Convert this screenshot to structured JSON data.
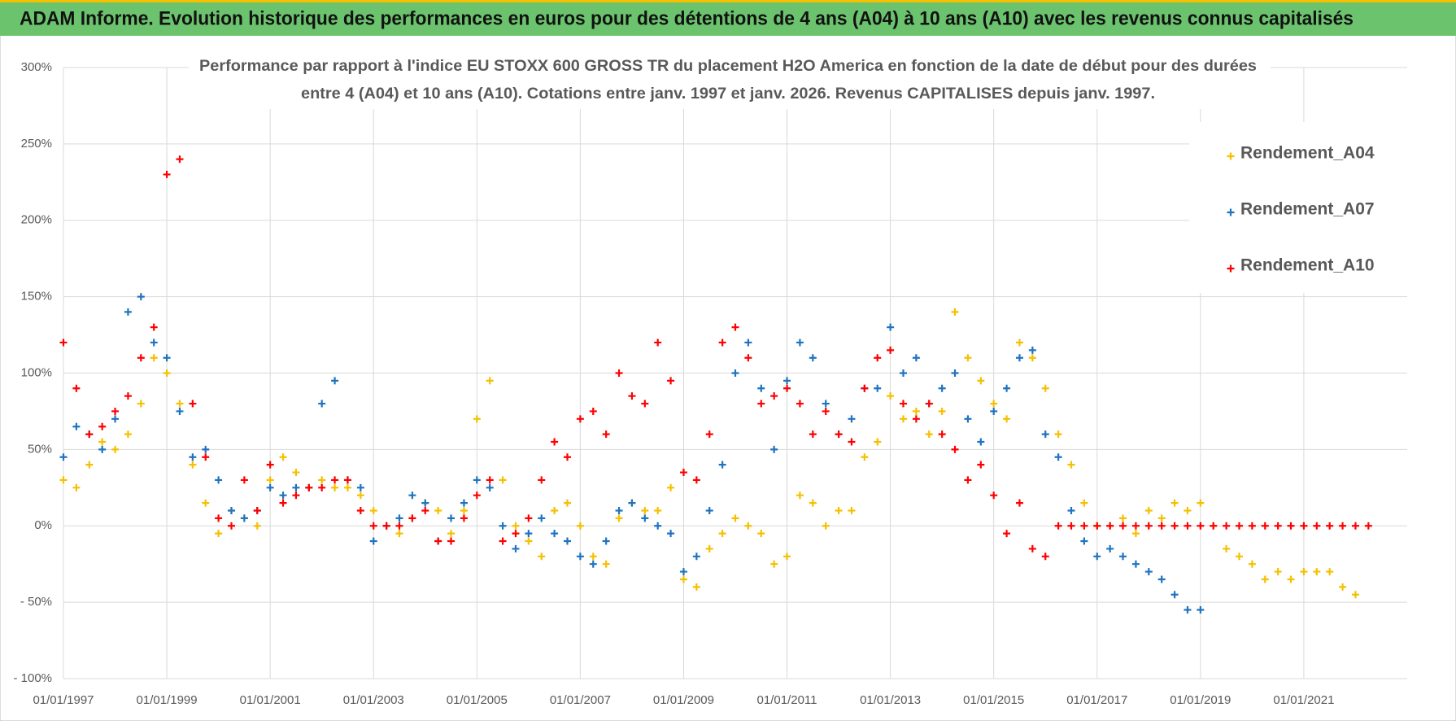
{
  "banner": "ADAM Informe. Evolution historique des performances en euros pour des détentions de 4 ans (A04) à 10 ans (A10) avec les revenus connus capitalisés",
  "chart_data": {
    "type": "scatter",
    "title": [
      "Performance par rapport à l'indice EU STOXX 600 GROSS TR  du placement H2O America en fonction de la date de début pour des durées",
      "entre 4 (A04) et 10 ans (A10).  Cotations entre janv. 1997 et janv. 2026. Revenus CAPITALISES  depuis janv. 1997."
    ],
    "x": [
      "01/01/1997",
      "01/04/1997",
      "01/07/1997",
      "01/10/1997",
      "01/01/1998",
      "01/04/1998",
      "01/07/1998",
      "01/10/1998",
      "01/01/1999",
      "01/04/1999",
      "01/07/1999",
      "01/10/1999",
      "01/01/2000",
      "01/04/2000",
      "01/07/2000",
      "01/10/2000",
      "01/01/2001",
      "01/04/2001",
      "01/07/2001",
      "01/10/2001",
      "01/01/2002",
      "01/04/2002",
      "01/07/2002",
      "01/10/2002",
      "01/01/2003",
      "01/04/2003",
      "01/07/2003",
      "01/10/2003",
      "01/01/2004",
      "01/04/2004",
      "01/07/2004",
      "01/10/2004",
      "01/01/2005",
      "01/04/2005",
      "01/07/2005",
      "01/10/2005",
      "01/01/2006",
      "01/04/2006",
      "01/07/2006",
      "01/10/2006",
      "01/01/2007",
      "01/04/2007",
      "01/07/2007",
      "01/10/2007",
      "01/01/2008",
      "01/04/2008",
      "01/07/2008",
      "01/10/2008",
      "01/01/2009",
      "01/04/2009",
      "01/07/2009",
      "01/10/2009",
      "01/01/2010",
      "01/04/2010",
      "01/07/2010",
      "01/10/2010",
      "01/01/2011",
      "01/04/2011",
      "01/07/2011",
      "01/10/2011",
      "01/01/2012",
      "01/04/2012",
      "01/07/2012",
      "01/10/2012",
      "01/01/2013",
      "01/04/2013",
      "01/07/2013",
      "01/10/2013",
      "01/01/2014",
      "01/04/2014",
      "01/07/2014",
      "01/10/2014",
      "01/01/2015",
      "01/04/2015",
      "01/07/2015",
      "01/10/2015",
      "01/01/2016",
      "01/04/2016",
      "01/07/2016",
      "01/10/2016",
      "01/01/2017",
      "01/04/2017",
      "01/07/2017",
      "01/10/2017",
      "01/01/2018",
      "01/04/2018",
      "01/07/2018",
      "01/10/2018",
      "01/01/2019",
      "01/04/2019",
      "01/07/2019",
      "01/10/2019",
      "01/01/2020",
      "01/04/2020",
      "01/07/2020",
      "01/10/2020",
      "01/01/2021",
      "01/04/2021",
      "01/07/2021",
      "01/10/2021",
      "01/01/2022",
      "01/04/2022",
      "01/07/2022",
      "01/10/2022"
    ],
    "series": [
      {
        "name": "Rendement_A04",
        "color": "#f5c000",
        "values": [
          30,
          25,
          40,
          55,
          50,
          60,
          80,
          110,
          100,
          80,
          40,
          15,
          -5,
          10,
          5,
          0,
          30,
          45,
          35,
          25,
          30,
          25,
          25,
          20,
          10,
          0,
          -5,
          5,
          15,
          10,
          -5,
          10,
          70,
          95,
          30,
          0,
          -10,
          -20,
          10,
          15,
          0,
          -20,
          -25,
          5,
          15,
          10,
          10,
          25,
          -35,
          -40,
          -15,
          -5,
          5,
          0,
          -5,
          -25,
          -20,
          20,
          15,
          0,
          10,
          10,
          45,
          55,
          85,
          70,
          75,
          60,
          75,
          140,
          110,
          95,
          80,
          70,
          120,
          110,
          90,
          60,
          40,
          15,
          0,
          0,
          5,
          -5,
          10,
          5,
          15,
          10,
          15,
          0,
          -15,
          -20,
          -25,
          -35,
          -30,
          -35,
          -30,
          -30,
          -30,
          -40,
          -45,
          null,
          null,
          null
        ]
      },
      {
        "name": "Rendement_A07",
        "color": "#1f73c0",
        "values": [
          45,
          65,
          60,
          50,
          70,
          140,
          150,
          120,
          110,
          75,
          45,
          50,
          30,
          10,
          5,
          10,
          25,
          20,
          25,
          25,
          80,
          95,
          30,
          25,
          -10,
          0,
          5,
          20,
          15,
          -10,
          5,
          15,
          30,
          25,
          0,
          -15,
          -5,
          5,
          -5,
          -10,
          -20,
          -25,
          -10,
          10,
          15,
          5,
          0,
          -5,
          -30,
          -20,
          10,
          40,
          100,
          120,
          90,
          50,
          95,
          120,
          110,
          80,
          60,
          70,
          90,
          90,
          130,
          100,
          110,
          80,
          90,
          100,
          70,
          55,
          75,
          90,
          110,
          115,
          60,
          45,
          10,
          -10,
          -20,
          -15,
          -20,
          -25,
          -30,
          -35,
          -45,
          -55,
          -55,
          null,
          null,
          null,
          null,
          null,
          null,
          null,
          null,
          null,
          null,
          null,
          null,
          null,
          null,
          null
        ]
      },
      {
        "name": "Rendement_A10",
        "color": "#ff0000",
        "values": [
          120,
          90,
          60,
          65,
          75,
          85,
          110,
          130,
          230,
          240,
          80,
          45,
          5,
          0,
          30,
          10,
          40,
          15,
          20,
          25,
          25,
          30,
          30,
          10,
          0,
          0,
          0,
          5,
          10,
          -10,
          -10,
          5,
          20,
          30,
          -10,
          -5,
          5,
          30,
          55,
          45,
          70,
          75,
          60,
          100,
          85,
          80,
          120,
          95,
          35,
          30,
          60,
          120,
          130,
          110,
          80,
          85,
          90,
          80,
          60,
          75,
          60,
          55,
          90,
          110,
          115,
          80,
          70,
          80,
          60,
          50,
          30,
          40,
          20,
          -5,
          15,
          -15,
          -20,
          0,
          0,
          0,
          0,
          0,
          0,
          0,
          0,
          0,
          0,
          0,
          0,
          0,
          0,
          0,
          0,
          0,
          0,
          0,
          0,
          0,
          0,
          0,
          0,
          0
        ]
      }
    ],
    "xlim": [
      "01/01/1997",
      "01/01/2023"
    ],
    "xticks": [
      "01/01/1997",
      "01/01/1999",
      "01/01/2001",
      "01/01/2003",
      "01/01/2005",
      "01/01/2007",
      "01/01/2009",
      "01/01/2011",
      "01/01/2013",
      "01/01/2015",
      "01/01/2017",
      "01/01/2019",
      "01/01/2021"
    ],
    "ylim": [
      -100,
      300
    ],
    "yticks": [
      {
        "value": -100,
        "label": "- 100%"
      },
      {
        "value": -50,
        "label": "- 50%"
      },
      {
        "value": 0,
        "label": "0%"
      },
      {
        "value": 50,
        "label": "50%"
      },
      {
        "value": 100,
        "label": "100%"
      },
      {
        "value": 150,
        "label": "150%"
      },
      {
        "value": 200,
        "label": "200%"
      },
      {
        "value": 250,
        "label": "250%"
      },
      {
        "value": 300,
        "label": "300%"
      }
    ],
    "grid": true,
    "legend": "upper right"
  }
}
